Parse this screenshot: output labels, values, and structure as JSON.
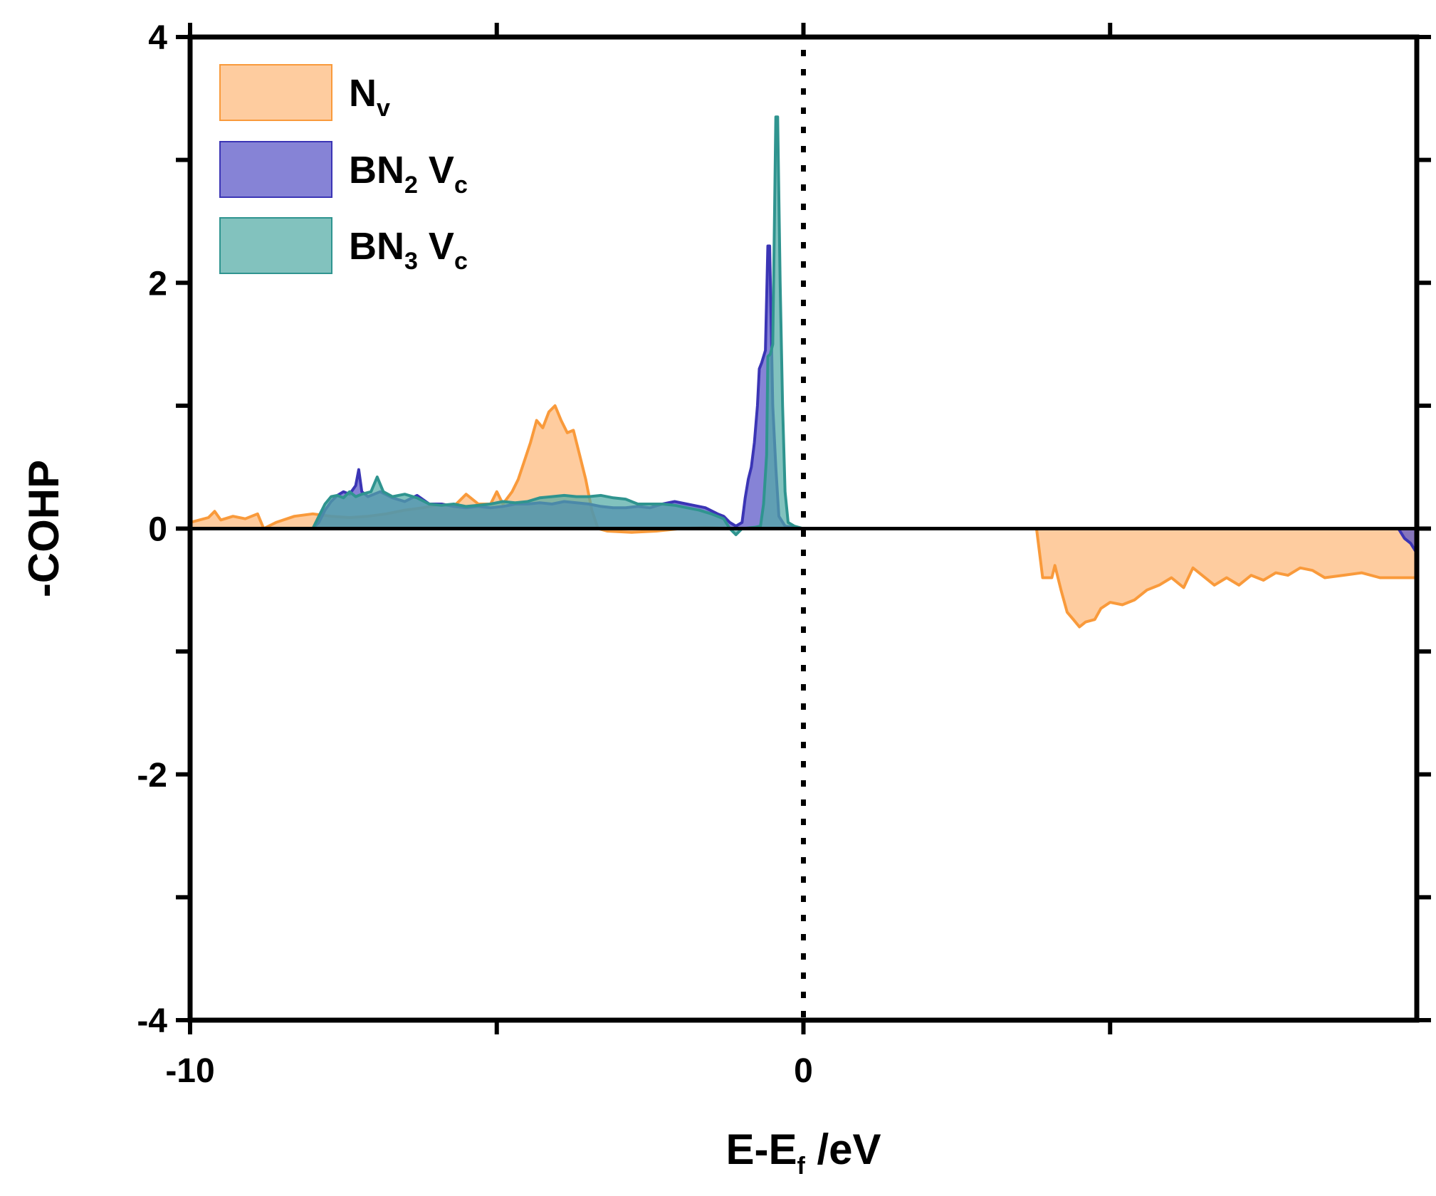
{
  "chart_data": {
    "type": "area",
    "xlabel": {
      "main": "E-E",
      "sub": "f",
      "tail": " /eV"
    },
    "ylabel": "-COHP",
    "xlim": [
      -10,
      10
    ],
    "ylim": [
      -4,
      4
    ],
    "x_ticks_labeled": [
      -10,
      0
    ],
    "x_ticks_minor": [
      -5,
      5
    ],
    "y_ticks_labeled": [
      -4,
      -2,
      0,
      2,
      4
    ],
    "y_ticks_minor": [
      -3,
      -1,
      1,
      3
    ],
    "vline": {
      "x": 0,
      "style": "dotted"
    },
    "grid": false,
    "legend_position": "top-left",
    "series": [
      {
        "legend_main": "N",
        "legend_sub": "v",
        "legend_tail": "",
        "name": "Nv",
        "fill": "#fdb97a",
        "stroke": "#f99a3b",
        "points": [
          [
            -10,
            0.05
          ],
          [
            -9.7,
            0.09
          ],
          [
            -9.6,
            0.14
          ],
          [
            -9.5,
            0.07
          ],
          [
            -9.3,
            0.1
          ],
          [
            -9.1,
            0.08
          ],
          [
            -8.9,
            0.12
          ],
          [
            -8.8,
            0.0
          ],
          [
            -8.6,
            0.05
          ],
          [
            -8.3,
            0.1
          ],
          [
            -8.0,
            0.12
          ],
          [
            -7.7,
            0.1
          ],
          [
            -7.4,
            0.09
          ],
          [
            -7.1,
            0.1
          ],
          [
            -6.8,
            0.12
          ],
          [
            -6.5,
            0.15
          ],
          [
            -6.2,
            0.17
          ],
          [
            -5.9,
            0.2
          ],
          [
            -5.7,
            0.18
          ],
          [
            -5.5,
            0.28
          ],
          [
            -5.3,
            0.2
          ],
          [
            -5.1,
            0.2
          ],
          [
            -5.0,
            0.3
          ],
          [
            -4.9,
            0.2
          ],
          [
            -4.75,
            0.3
          ],
          [
            -4.65,
            0.4
          ],
          [
            -4.55,
            0.55
          ],
          [
            -4.45,
            0.7
          ],
          [
            -4.35,
            0.88
          ],
          [
            -4.25,
            0.82
          ],
          [
            -4.15,
            0.95
          ],
          [
            -4.05,
            1.0
          ],
          [
            -3.95,
            0.88
          ],
          [
            -3.85,
            0.78
          ],
          [
            -3.75,
            0.8
          ],
          [
            -3.65,
            0.6
          ],
          [
            -3.55,
            0.4
          ],
          [
            -3.45,
            0.15
          ],
          [
            -3.35,
            0.0
          ],
          [
            -3.2,
            -0.02
          ],
          [
            -2.8,
            -0.03
          ],
          [
            -2.4,
            -0.02
          ],
          [
            -2.0,
            0.0
          ],
          [
            -1.6,
            0.01
          ],
          [
            -1.2,
            0.0
          ],
          [
            0,
            0.0
          ],
          [
            2.0,
            0.0
          ],
          [
            3.8,
            0.0
          ],
          [
            3.9,
            -0.4
          ],
          [
            4.05,
            -0.4
          ],
          [
            4.1,
            -0.3
          ],
          [
            4.2,
            -0.5
          ],
          [
            4.3,
            -0.68
          ],
          [
            4.4,
            -0.74
          ],
          [
            4.5,
            -0.8
          ],
          [
            4.6,
            -0.76
          ],
          [
            4.75,
            -0.74
          ],
          [
            4.85,
            -0.65
          ],
          [
            5.0,
            -0.6
          ],
          [
            5.2,
            -0.62
          ],
          [
            5.4,
            -0.58
          ],
          [
            5.6,
            -0.5
          ],
          [
            5.8,
            -0.46
          ],
          [
            6.0,
            -0.4
          ],
          [
            6.2,
            -0.48
          ],
          [
            6.35,
            -0.32
          ],
          [
            6.5,
            -0.38
          ],
          [
            6.7,
            -0.46
          ],
          [
            6.9,
            -0.4
          ],
          [
            7.1,
            -0.46
          ],
          [
            7.3,
            -0.38
          ],
          [
            7.5,
            -0.42
          ],
          [
            7.7,
            -0.36
          ],
          [
            7.9,
            -0.38
          ],
          [
            8.1,
            -0.32
          ],
          [
            8.3,
            -0.34
          ],
          [
            8.5,
            -0.4
          ],
          [
            8.8,
            -0.38
          ],
          [
            9.1,
            -0.36
          ],
          [
            9.4,
            -0.4
          ],
          [
            10.0,
            -0.4
          ]
        ]
      },
      {
        "legend_main": "BN",
        "legend_sub": "2",
        "legend_tail": " V",
        "legend_sub2": "c",
        "name": "BN2 Vc",
        "fill": "#5753c6",
        "stroke": "#3b35b5",
        "points": [
          [
            -10,
            0.0
          ],
          [
            -8.0,
            0.0
          ],
          [
            -7.9,
            0.05
          ],
          [
            -7.8,
            0.15
          ],
          [
            -7.7,
            0.22
          ],
          [
            -7.6,
            0.27
          ],
          [
            -7.5,
            0.3
          ],
          [
            -7.4,
            0.28
          ],
          [
            -7.3,
            0.35
          ],
          [
            -7.25,
            0.48
          ],
          [
            -7.2,
            0.3
          ],
          [
            -7.1,
            0.26
          ],
          [
            -6.9,
            0.3
          ],
          [
            -6.7,
            0.25
          ],
          [
            -6.5,
            0.22
          ],
          [
            -6.3,
            0.27
          ],
          [
            -6.1,
            0.2
          ],
          [
            -5.9,
            0.2
          ],
          [
            -5.7,
            0.18
          ],
          [
            -5.5,
            0.17
          ],
          [
            -5.3,
            0.18
          ],
          [
            -5.1,
            0.17
          ],
          [
            -4.9,
            0.18
          ],
          [
            -4.7,
            0.2
          ],
          [
            -4.5,
            0.2
          ],
          [
            -4.3,
            0.21
          ],
          [
            -4.1,
            0.2
          ],
          [
            -3.9,
            0.22
          ],
          [
            -3.7,
            0.21
          ],
          [
            -3.5,
            0.2
          ],
          [
            -3.3,
            0.18
          ],
          [
            -3.1,
            0.17
          ],
          [
            -2.9,
            0.17
          ],
          [
            -2.7,
            0.18
          ],
          [
            -2.5,
            0.17
          ],
          [
            -2.3,
            0.2
          ],
          [
            -2.1,
            0.22
          ],
          [
            -1.9,
            0.2
          ],
          [
            -1.8,
            0.19
          ],
          [
            -1.6,
            0.17
          ],
          [
            -1.4,
            0.12
          ],
          [
            -1.3,
            0.1
          ],
          [
            -1.2,
            0.05
          ],
          [
            -1.1,
            0.02
          ],
          [
            -1.0,
            0.05
          ],
          [
            -0.95,
            0.25
          ],
          [
            -0.9,
            0.4
          ],
          [
            -0.85,
            0.5
          ],
          [
            -0.8,
            0.7
          ],
          [
            -0.75,
            1.0
          ],
          [
            -0.72,
            1.3
          ],
          [
            -0.68,
            1.35
          ],
          [
            -0.62,
            1.45
          ],
          [
            -0.58,
            2.3
          ],
          [
            -0.55,
            2.3
          ],
          [
            -0.5,
            1.0
          ],
          [
            -0.45,
            0.5
          ],
          [
            -0.4,
            0.1
          ],
          [
            -0.3,
            0.02
          ],
          [
            0,
            0.0
          ],
          [
            9.7,
            0.0
          ],
          [
            9.8,
            -0.08
          ],
          [
            9.9,
            -0.12
          ],
          [
            10.0,
            -0.2
          ]
        ]
      },
      {
        "legend_main": "BN",
        "legend_sub": "3",
        "legend_tail": " V",
        "legend_sub2": "c",
        "name": "BN3 Vc",
        "fill": "#52aba5",
        "stroke": "#2f948f",
        "points": [
          [
            -10,
            0.0
          ],
          [
            -8.0,
            0.0
          ],
          [
            -7.9,
            0.1
          ],
          [
            -7.8,
            0.2
          ],
          [
            -7.7,
            0.26
          ],
          [
            -7.6,
            0.27
          ],
          [
            -7.5,
            0.25
          ],
          [
            -7.4,
            0.3
          ],
          [
            -7.3,
            0.26
          ],
          [
            -7.2,
            0.28
          ],
          [
            -7.05,
            0.3
          ],
          [
            -6.95,
            0.42
          ],
          [
            -6.85,
            0.3
          ],
          [
            -6.7,
            0.26
          ],
          [
            -6.5,
            0.28
          ],
          [
            -6.3,
            0.25
          ],
          [
            -6.1,
            0.2
          ],
          [
            -5.9,
            0.19
          ],
          [
            -5.7,
            0.2
          ],
          [
            -5.5,
            0.18
          ],
          [
            -5.3,
            0.19
          ],
          [
            -5.1,
            0.2
          ],
          [
            -4.9,
            0.22
          ],
          [
            -4.7,
            0.21
          ],
          [
            -4.5,
            0.22
          ],
          [
            -4.3,
            0.25
          ],
          [
            -4.1,
            0.26
          ],
          [
            -3.9,
            0.27
          ],
          [
            -3.7,
            0.26
          ],
          [
            -3.5,
            0.26
          ],
          [
            -3.3,
            0.27
          ],
          [
            -3.1,
            0.25
          ],
          [
            -2.9,
            0.24
          ],
          [
            -2.7,
            0.2
          ],
          [
            -2.5,
            0.2
          ],
          [
            -2.3,
            0.2
          ],
          [
            -2.1,
            0.19
          ],
          [
            -1.9,
            0.17
          ],
          [
            -1.7,
            0.15
          ],
          [
            -1.5,
            0.12
          ],
          [
            -1.3,
            0.08
          ],
          [
            -1.2,
            0.0
          ],
          [
            -1.1,
            -0.05
          ],
          [
            -1.0,
            0.0
          ],
          [
            -0.8,
            0.01
          ],
          [
            -0.7,
            0.02
          ],
          [
            -0.65,
            0.2
          ],
          [
            -0.6,
            0.6
          ],
          [
            -0.58,
            1.4
          ],
          [
            -0.54,
            1.42
          ],
          [
            -0.5,
            1.5
          ],
          [
            -0.47,
            2.6
          ],
          [
            -0.45,
            3.35
          ],
          [
            -0.42,
            3.35
          ],
          [
            -0.38,
            2.0
          ],
          [
            -0.34,
            1.0
          ],
          [
            -0.3,
            0.3
          ],
          [
            -0.25,
            0.05
          ],
          [
            -0.15,
            0.02
          ],
          [
            0,
            0.0
          ],
          [
            10.0,
            0.0
          ]
        ]
      }
    ]
  }
}
